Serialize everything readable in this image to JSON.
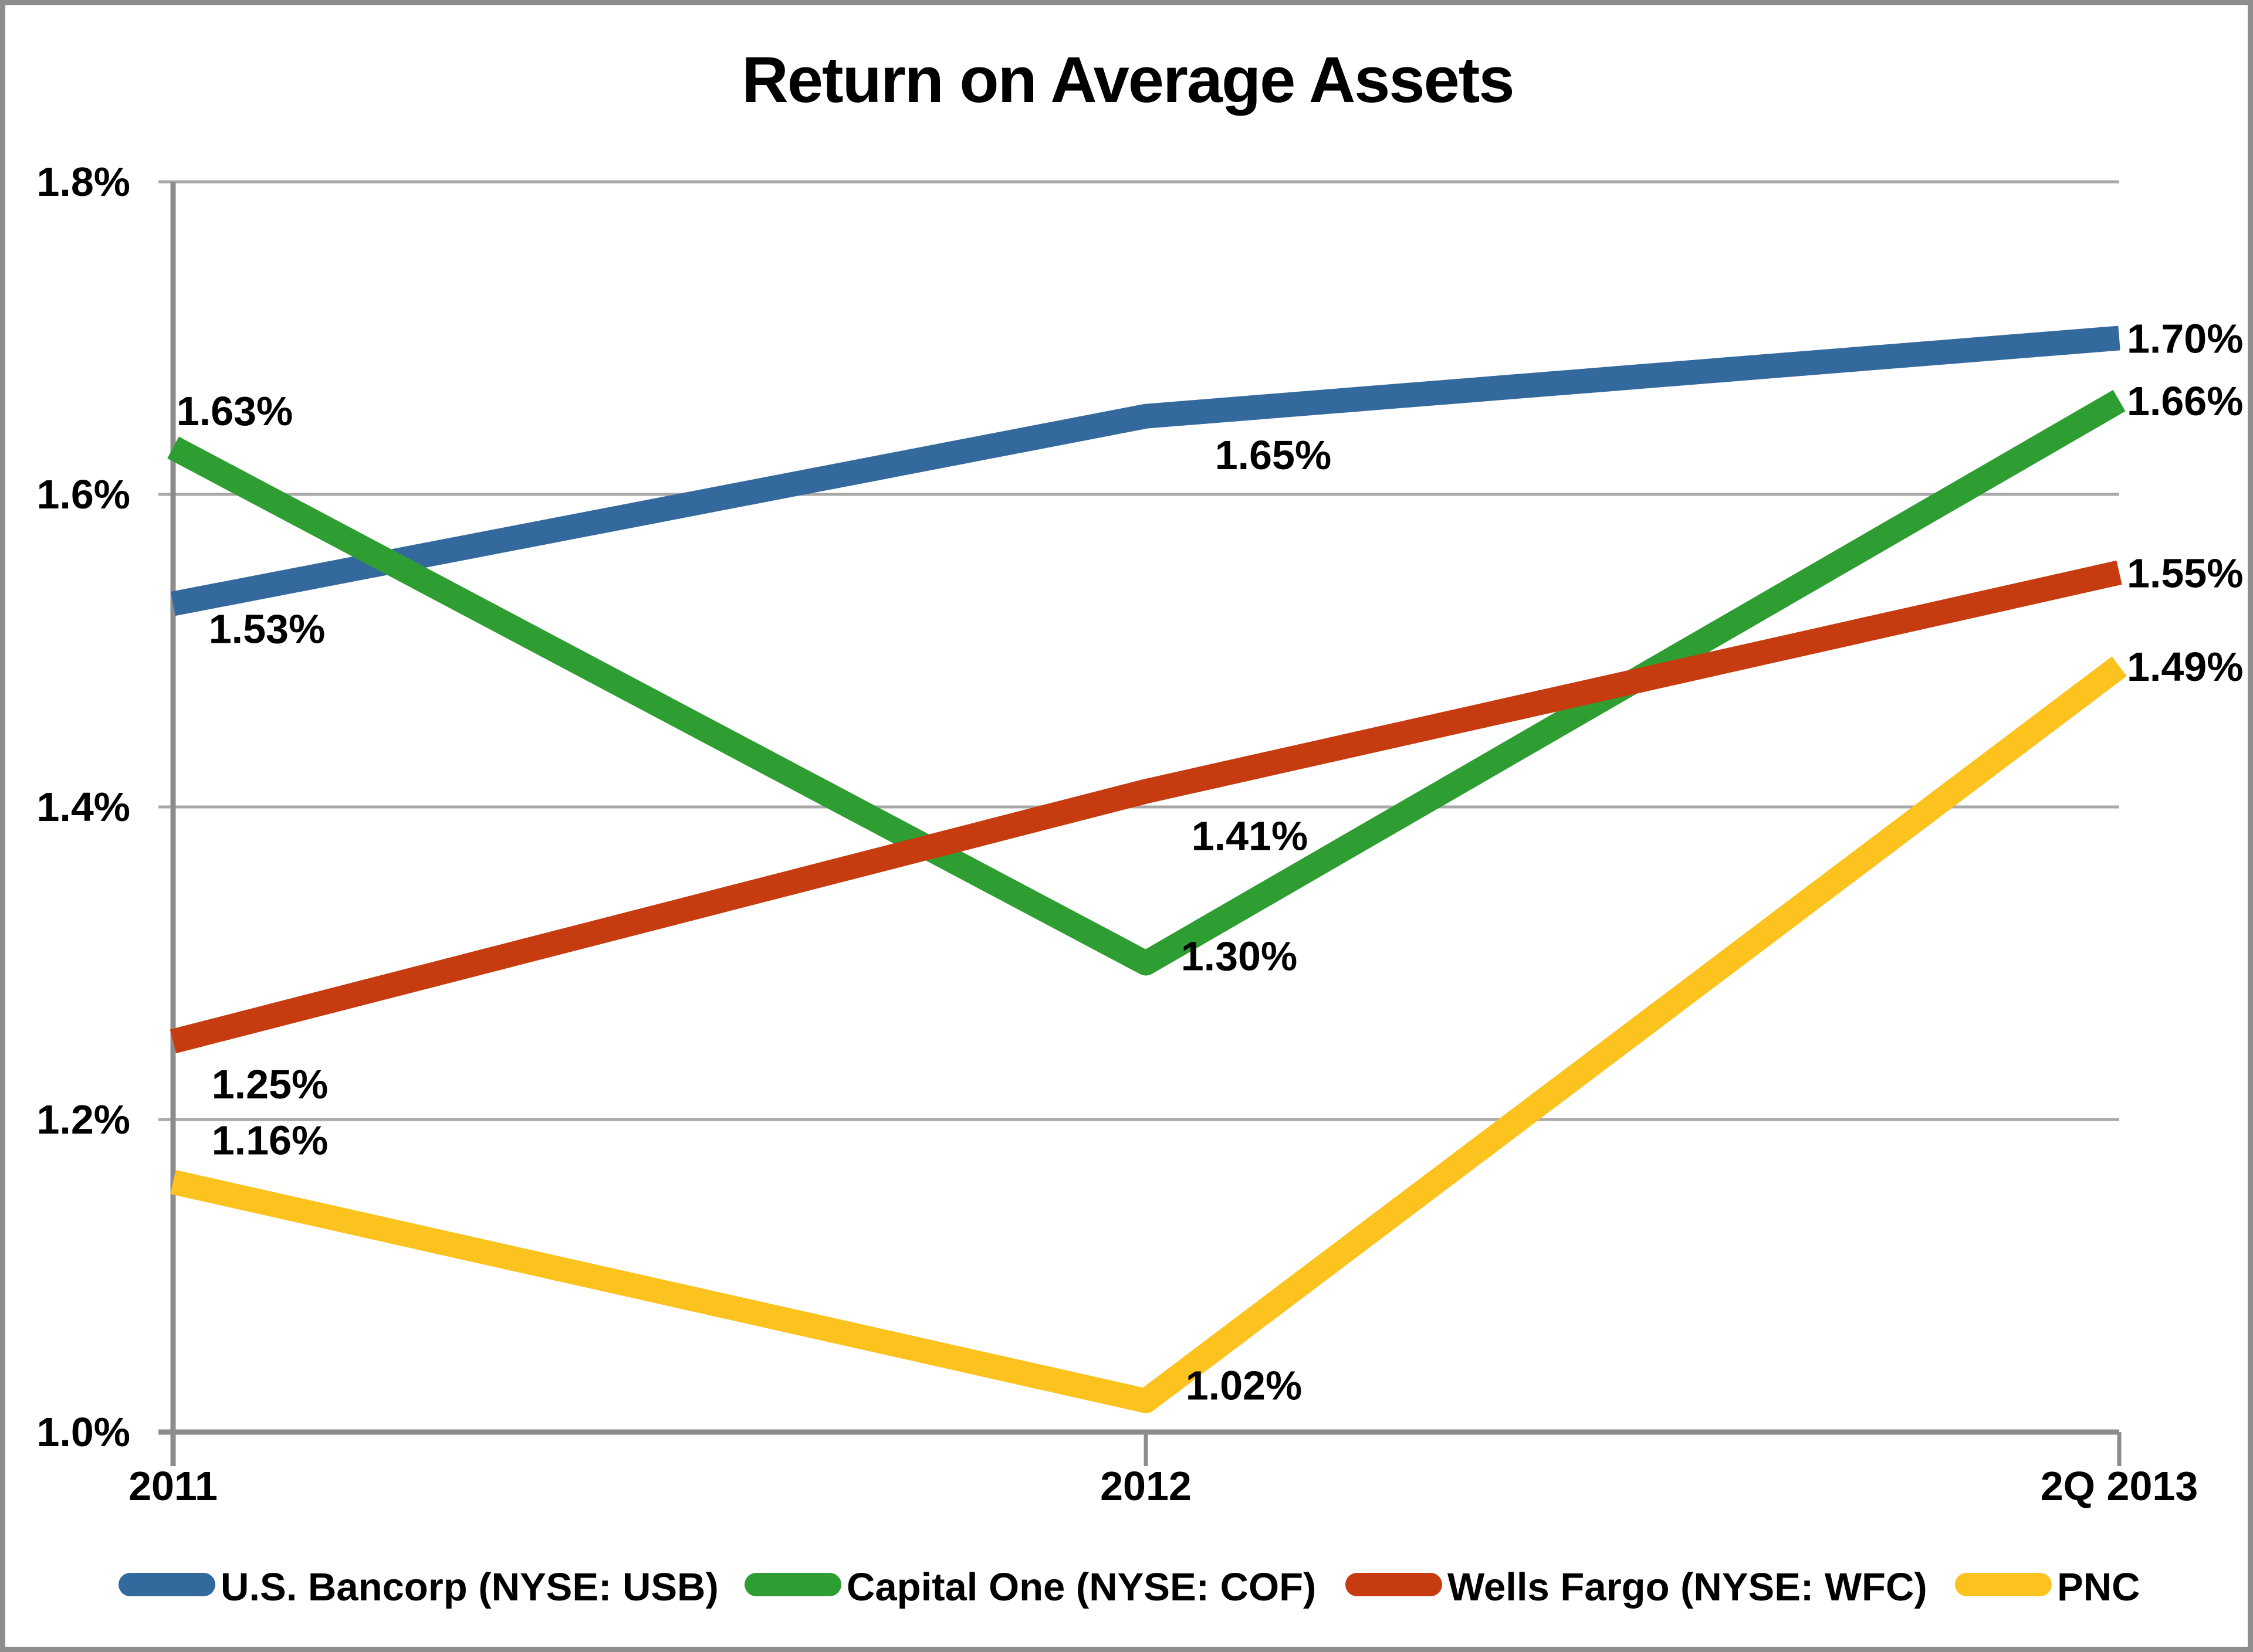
{
  "title": "Return on Average Assets",
  "chart_data": {
    "type": "line",
    "title": "Return on Average Assets",
    "categories": [
      "2011",
      "2012",
      "2Q 2013"
    ],
    "series": [
      {
        "name": "U.S. Bancorp (NYSE: USB)",
        "color": "#34699D",
        "values": [
          1.53,
          1.65,
          1.7
        ],
        "point_labels": [
          "1.53%",
          "1.65%",
          "1.70%"
        ]
      },
      {
        "name": "Capital One (NYSE: COF)",
        "color": "#2F9E32",
        "values": [
          1.63,
          1.3,
          1.66
        ],
        "point_labels": [
          "1.63%",
          "1.30%",
          "1.66%"
        ]
      },
      {
        "name": "Wells Fargo (NYSE: WFC)",
        "color": "#C63B10",
        "values": [
          1.25,
          1.41,
          1.55
        ],
        "point_labels": [
          "1.25%",
          "1.41%",
          "1.55%"
        ]
      },
      {
        "name": "PNC",
        "color": "#FCC21D",
        "values": [
          1.16,
          1.02,
          1.49
        ],
        "point_labels": [
          "1.16%",
          "1.02%",
          "1.49%"
        ]
      }
    ],
    "ylim": [
      1.0,
      1.8
    ],
    "yticks": [
      {
        "value": 1.8,
        "label": "1.8%"
      },
      {
        "value": 1.6,
        "label": "1.6%"
      },
      {
        "value": 1.4,
        "label": "1.4%"
      },
      {
        "value": 1.2,
        "label": "1.2%"
      },
      {
        "value": 1.0,
        "label": "1.0%"
      }
    ],
    "grid": "horizontal",
    "legend_position": "bottom"
  },
  "colors": {
    "gridline": "#A8A8A8",
    "axis": "#8C8C8C",
    "frame_border": "#8E8E8E",
    "text": "#000000",
    "background": "#FFFFFF"
  }
}
